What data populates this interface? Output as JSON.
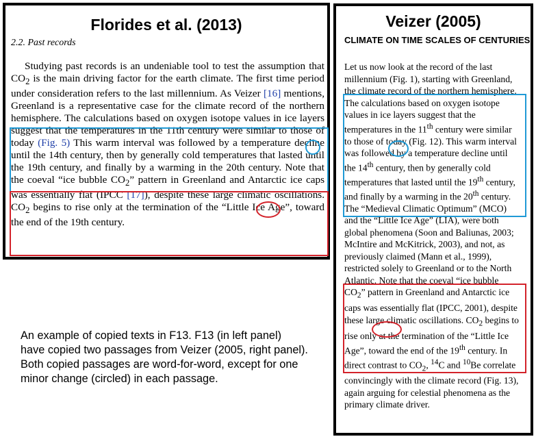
{
  "left_panel": {
    "title": "Florides et al. (2013)",
    "section": "2.2.  Past records",
    "seg1": "Studying past records is an undeniable tool to test the assumption that CO",
    "seg1_sub": "2",
    "seg2": " is the main driving factor for the earth climate. The first time period under consideration refers to the last millennium. As Veizer ",
    "seg2_ref": "[16]",
    "seg3": " mentions, Greenland is a representative case for the climate record of the northern hemisphere. ",
    "seg4": "The calculations based on oxygen isotope values in ice layers suggest that the temperatures in the 11th century were similar to those of today ",
    "seg4_fig": "(Fig. 5)",
    "seg5": " This warm interval was followed by a temperature decline until the 14th century, then by generally cold temperatures that lasted until the 19th century, and finally by a warming in the 20th century. ",
    "seg6": "Note that the coeval “ice bubble CO",
    "seg6_sub": "2",
    "seg7": "” pattern in Greenland and Antarctic ice caps was essentially flat (IPCC ",
    "seg7_ref": "[17]",
    "seg8": "), despite these large climatic oscillations. CO",
    "seg8_sub": "2",
    "seg9": " begins to rise only at the termination of the “Little Ice Age”, toward the end of the 19th century."
  },
  "right_panel": {
    "title": "Veizer (2005)",
    "heading": "CLIMATE ON TIME SCALES OF CENTURIES",
    "r1": "Let us now look at the record of the last millennium (Fig. 1), starting with Greenland, the climate record of the northern hemisphere. ",
    "r2a": "The calculations based on oxygen isotope values in ice layers suggest that the temperatures in the 11",
    "r2_sup1": "th",
    "r2b": " century were similar to those of today (Fig. 12). This warm interval was followed by a temperature decline until the 14",
    "r2_sup2": "th",
    "r2c": " century, then by generally cold temperatures that lasted until the 19",
    "r2_sup3": "th",
    "r2d": " century, and finally by a warming in the 20",
    "r2_sup4": "th",
    "r2e": " century. ",
    "r3": "The “Medieval Climatic Optimum” (MCO) and the “Little Ice Age” (LIA), were both global phenomena (Soon and Baliunas, 2003; McIntire and McKitrick, 2003), and not, as previously claimed (Mann et al., 1999), restricted solely to Greenland or to the North Atlantic. ",
    "r4a": "Note that the coeval “ice bubble CO",
    "r4_sub1": "2",
    "r4b": "” pattern in Greenland and Antarctic ice caps was essentially flat (IPCC, 2001), despite these large climatic oscillations. CO",
    "r4_sub2": "2",
    "r4c": " begins to rise only at the termination of the “Little Ice Age”, toward the end of the 19",
    "r4_sup": "th",
    "r4d": " century. ",
    "r5a": "In direct contrast to CO",
    "r5_sub": "2",
    "r5b": ", ",
    "r5_sup1": "14",
    "r5c": "C and ",
    "r5_sup2": "10",
    "r5d": "Be correlate convincingly with the climate record (Fig. 13), again arguing for celestial phenomena as the primary climate driver."
  },
  "caption": "An example of copied texts in F13. F13 (in left panel) have copied two passages from Veizer (2005, right panel). Both copied passages are word-for-word, except for one minor change (circled) in each passage.",
  "colors": {
    "highlight_blue": "#1f9ad6",
    "highlight_red": "#d3222a",
    "link_blue": "#1f3fa8"
  }
}
